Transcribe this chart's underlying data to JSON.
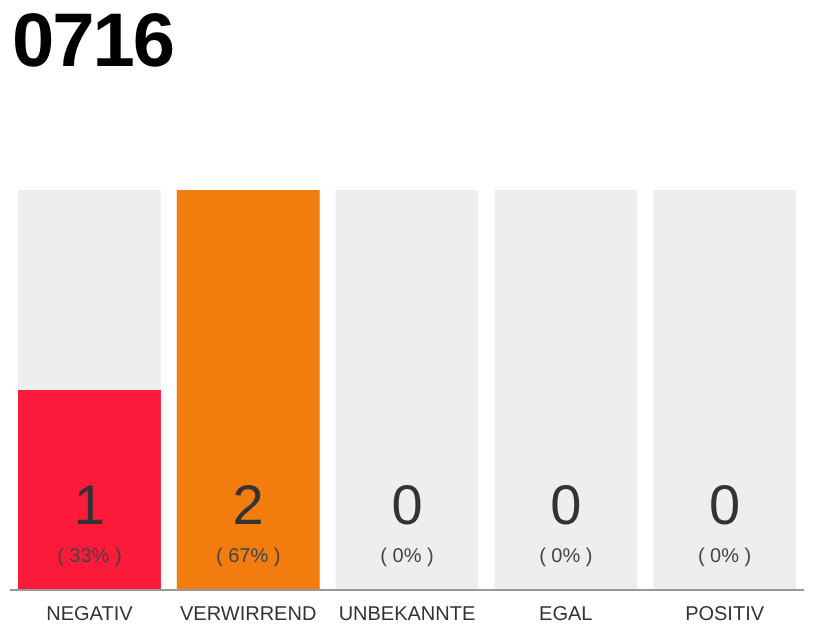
{
  "chart_data": {
    "type": "bar",
    "title": "0716",
    "stacked": true,
    "categories": [
      "NEGATIV",
      "VERWIRREND",
      "UNBEKANNTE",
      "EGAL",
      "POSITIV"
    ],
    "series": [
      {
        "colors": [
          "#fe1a3b",
          "#f27c0e",
          "#fe1a3b",
          "#fe1a3b",
          "#fe1a3b"
        ],
        "values": [
          1,
          2,
          0,
          0,
          0
        ],
        "value_labels": [
          "1",
          "2",
          null,
          null,
          null
        ]
      },
      {
        "color": "#eeeeee",
        "values": [
          1,
          0,
          2,
          2,
          2
        ]
      }
    ],
    "ylim": [
      0,
      2
    ],
    "tick_labels": "x",
    "annotations": [
      "( 33% )",
      "( 67% )",
      "( 0% )",
      "( 0% )",
      "( 0% )",
      "0",
      "0",
      "0"
    ]
  }
}
